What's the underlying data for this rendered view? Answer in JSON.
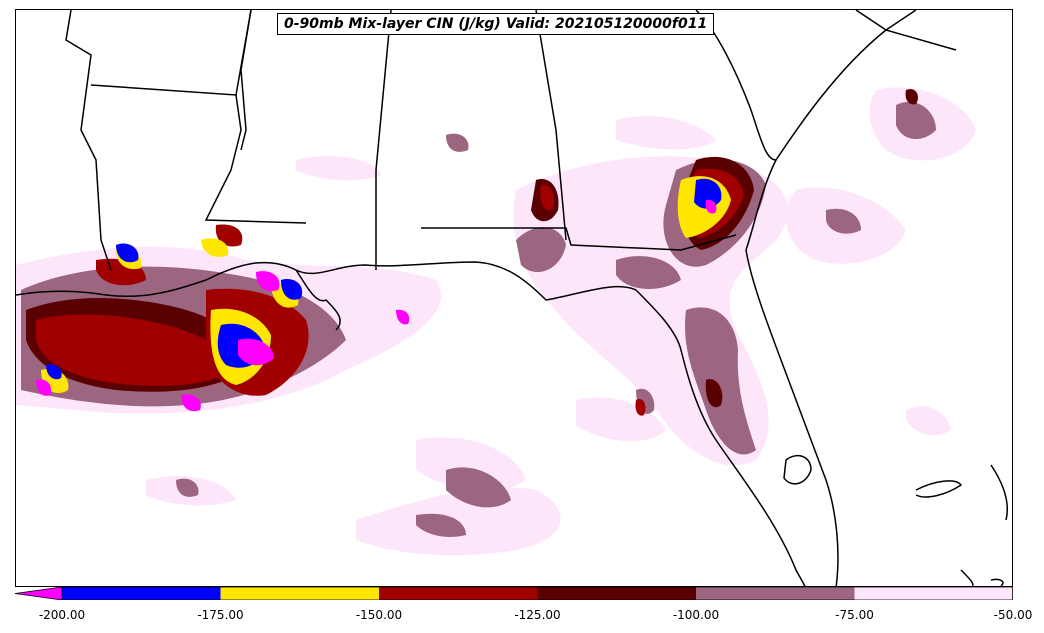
{
  "title": "0-90mb Mix-layer CIN (J/kg) Valid: 202105120000f011",
  "colorbar": {
    "levels": [
      -200,
      -175,
      -150,
      -125,
      -100,
      -75,
      -50
    ],
    "tick_labels": [
      "-200.00",
      "-175.00",
      "-150.00",
      "-125.00",
      "-100.00",
      "-75.00",
      "-50.00"
    ],
    "under_color": "#ff00ff",
    "colors": [
      "#0000ff",
      "#ffe600",
      "#a00000",
      "#5a0000",
      "#9c6680",
      "#fde6fa"
    ]
  },
  "colors": {
    "lt_-200": "#ff00ff",
    "-200_-175": "#0000ff",
    "-175_-150": "#ffe600",
    "-150_-125": "#a00000",
    "-125_-100": "#5a0000",
    "-100_-75": "#9c6680",
    "-75_-50": "#fde6fa",
    "borders": "#000000"
  }
}
